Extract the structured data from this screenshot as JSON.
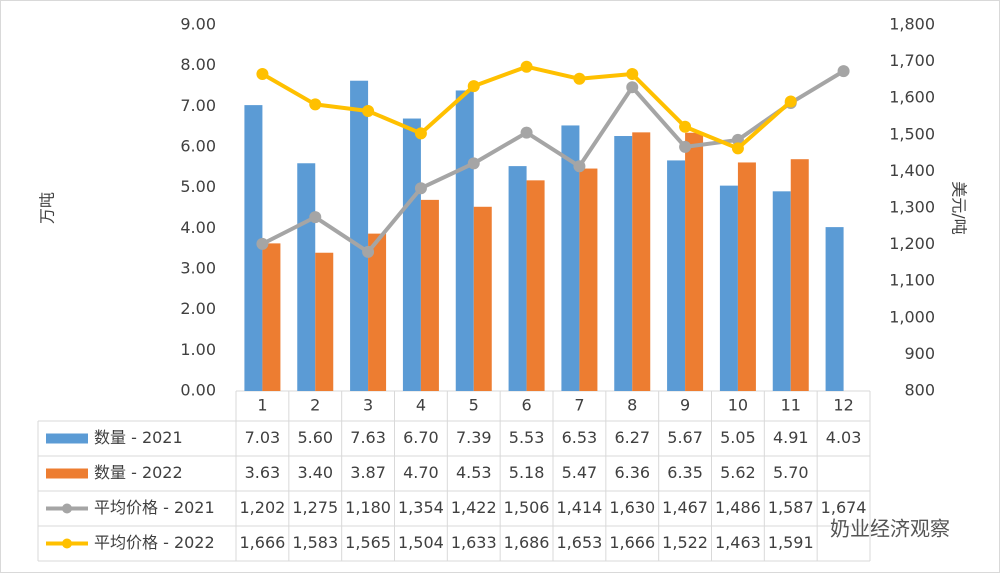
{
  "chart_data": {
    "type": "bar-line-table",
    "y_label": "万吨",
    "y2_label": "美元/吨",
    "categories": [
      "1",
      "2",
      "3",
      "4",
      "5",
      "6",
      "7",
      "8",
      "9",
      "10",
      "11",
      "12"
    ],
    "ylim": [
      0,
      9
    ],
    "yticks": [
      {
        "value": 0,
        "label": "0.00"
      },
      {
        "value": 1,
        "label": "1.00"
      },
      {
        "value": 2,
        "label": "2.00"
      },
      {
        "value": 3,
        "label": "3.00"
      },
      {
        "value": 4,
        "label": "4.00"
      },
      {
        "value": 5,
        "label": "5.00"
      },
      {
        "value": 6,
        "label": "6.00"
      },
      {
        "value": 7,
        "label": "7.00"
      },
      {
        "value": 8,
        "label": "8.00"
      },
      {
        "value": 9,
        "label": "9.00"
      }
    ],
    "y2lim": [
      800,
      1800
    ],
    "y2ticks": [
      800,
      900,
      {
        "value": 1000,
        "label": "1,000"
      },
      {
        "value": 1100,
        "label": "1,100"
      },
      {
        "value": 1200,
        "label": "1,200"
      },
      {
        "value": 1300,
        "label": "1,300"
      },
      {
        "value": 1400,
        "label": "1,400"
      },
      {
        "value": 1500,
        "label": "1,500"
      },
      {
        "value": 1600,
        "label": "1,600"
      },
      {
        "value": 1700,
        "label": "1,700"
      },
      {
        "value": 1800,
        "label": "1,800"
      }
    ],
    "series": [
      {
        "name": "数量 - 2021",
        "type": "bar",
        "color": "#5b9bd5",
        "values": [
          7.03,
          5.6,
          7.63,
          6.7,
          7.39,
          5.53,
          6.53,
          6.27,
          5.67,
          5.05,
          4.91,
          4.03
        ],
        "value_labels": [
          "7.03",
          "5.60",
          "7.63",
          "6.70",
          "7.39",
          "5.53",
          "6.53",
          "6.27",
          "5.67",
          "5.05",
          "4.91",
          "4.03"
        ]
      },
      {
        "name": "数量 - 2022",
        "type": "bar",
        "color": "#ed7d31",
        "values": [
          3.63,
          3.4,
          3.87,
          4.7,
          4.53,
          5.18,
          5.47,
          6.36,
          6.35,
          5.62,
          5.7,
          null
        ],
        "value_labels": [
          "3.63",
          "3.40",
          "3.87",
          "4.70",
          "4.53",
          "5.18",
          "5.47",
          "6.36",
          "6.35",
          "5.62",
          "5.70",
          null
        ]
      },
      {
        "name": "平均价格 - 2021",
        "type": "line",
        "axis": "y2",
        "color": "#a5a5a5",
        "values": [
          1202,
          1275,
          1180,
          1354,
          1422,
          1506,
          1414,
          1630,
          1467,
          1486,
          1587,
          1674
        ],
        "value_labels": [
          "1,202",
          "1,275",
          "1,180",
          "1,354",
          "1,422",
          "1,506",
          "1,414",
          "1,630",
          "1,467",
          "1,486",
          "1,587",
          "1,674"
        ]
      },
      {
        "name": "平均价格 - 2022",
        "type": "line",
        "axis": "y2",
        "color": "#ffc000",
        "values": [
          1666,
          1583,
          1565,
          1504,
          1633,
          1686,
          1653,
          1666,
          1522,
          1463,
          1591,
          null
        ],
        "value_labels": [
          "1,666",
          "1,583",
          "1,565",
          "1,504",
          "1,633",
          "1,686",
          "1,653",
          "1,666",
          "1,522",
          "1,463",
          "1,591",
          null
        ]
      }
    ],
    "watermark": "奶业经济观察"
  }
}
